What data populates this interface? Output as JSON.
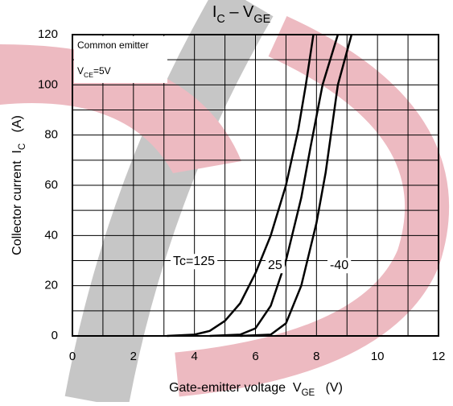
{
  "chart_data": {
    "type": "line",
    "title": [
      {
        "text": "I"
      },
      {
        "text": "C",
        "sub": true
      },
      {
        "text": " – V"
      },
      {
        "text": "GE",
        "sub": true
      }
    ],
    "x_label": [
      {
        "text": "Gate-emitter voltage  V"
      },
      {
        "text": "GE",
        "sub": true
      },
      {
        "text": "   (V)"
      }
    ],
    "y_label": [
      {
        "text": "Collector current  I"
      },
      {
        "text": "C",
        "sub": true
      },
      {
        "text": "   (A)"
      }
    ],
    "annotations": [
      [
        {
          "text": "Common emitter"
        }
      ],
      [
        {
          "text": "V"
        },
        {
          "text": "CE",
          "sub": true
        },
        {
          "text": "=5V"
        }
      ]
    ],
    "xlim": [
      0,
      12
    ],
    "xticks": [
      0,
      2,
      4,
      6,
      8,
      10,
      12
    ],
    "xminor": [
      1,
      3,
      5,
      7,
      9,
      11
    ],
    "ylim": [
      0,
      120
    ],
    "yticks": [
      0,
      20,
      40,
      60,
      80,
      100,
      120
    ],
    "yminor": [
      10,
      30,
      50,
      70,
      90,
      110
    ],
    "grid": true,
    "series": [
      {
        "name": "Tc=125",
        "color": "#000000",
        "x": [
          3.1,
          4,
          4.5,
          5,
          5.5,
          6,
          6.5,
          7,
          7.4,
          7.65,
          7.9
        ],
        "values": [
          0,
          0.5,
          2,
          6,
          13,
          25,
          40,
          60,
          82,
          100,
          120
        ]
      },
      {
        "name": "25",
        "color": "#000000",
        "x": [
          4.5,
          5.5,
          6,
          6.5,
          7,
          7.5,
          7.8,
          8.2,
          8.7
        ],
        "values": [
          0,
          0.5,
          3,
          12,
          30,
          55,
          75,
          100,
          120
        ]
      },
      {
        "name": "-40",
        "color": "#000000",
        "x": [
          5.5,
          6.5,
          7,
          7.5,
          8,
          8.3,
          8.7,
          9.15
        ],
        "values": [
          0,
          0.5,
          5,
          20,
          45,
          65,
          100,
          120
        ]
      }
    ]
  }
}
